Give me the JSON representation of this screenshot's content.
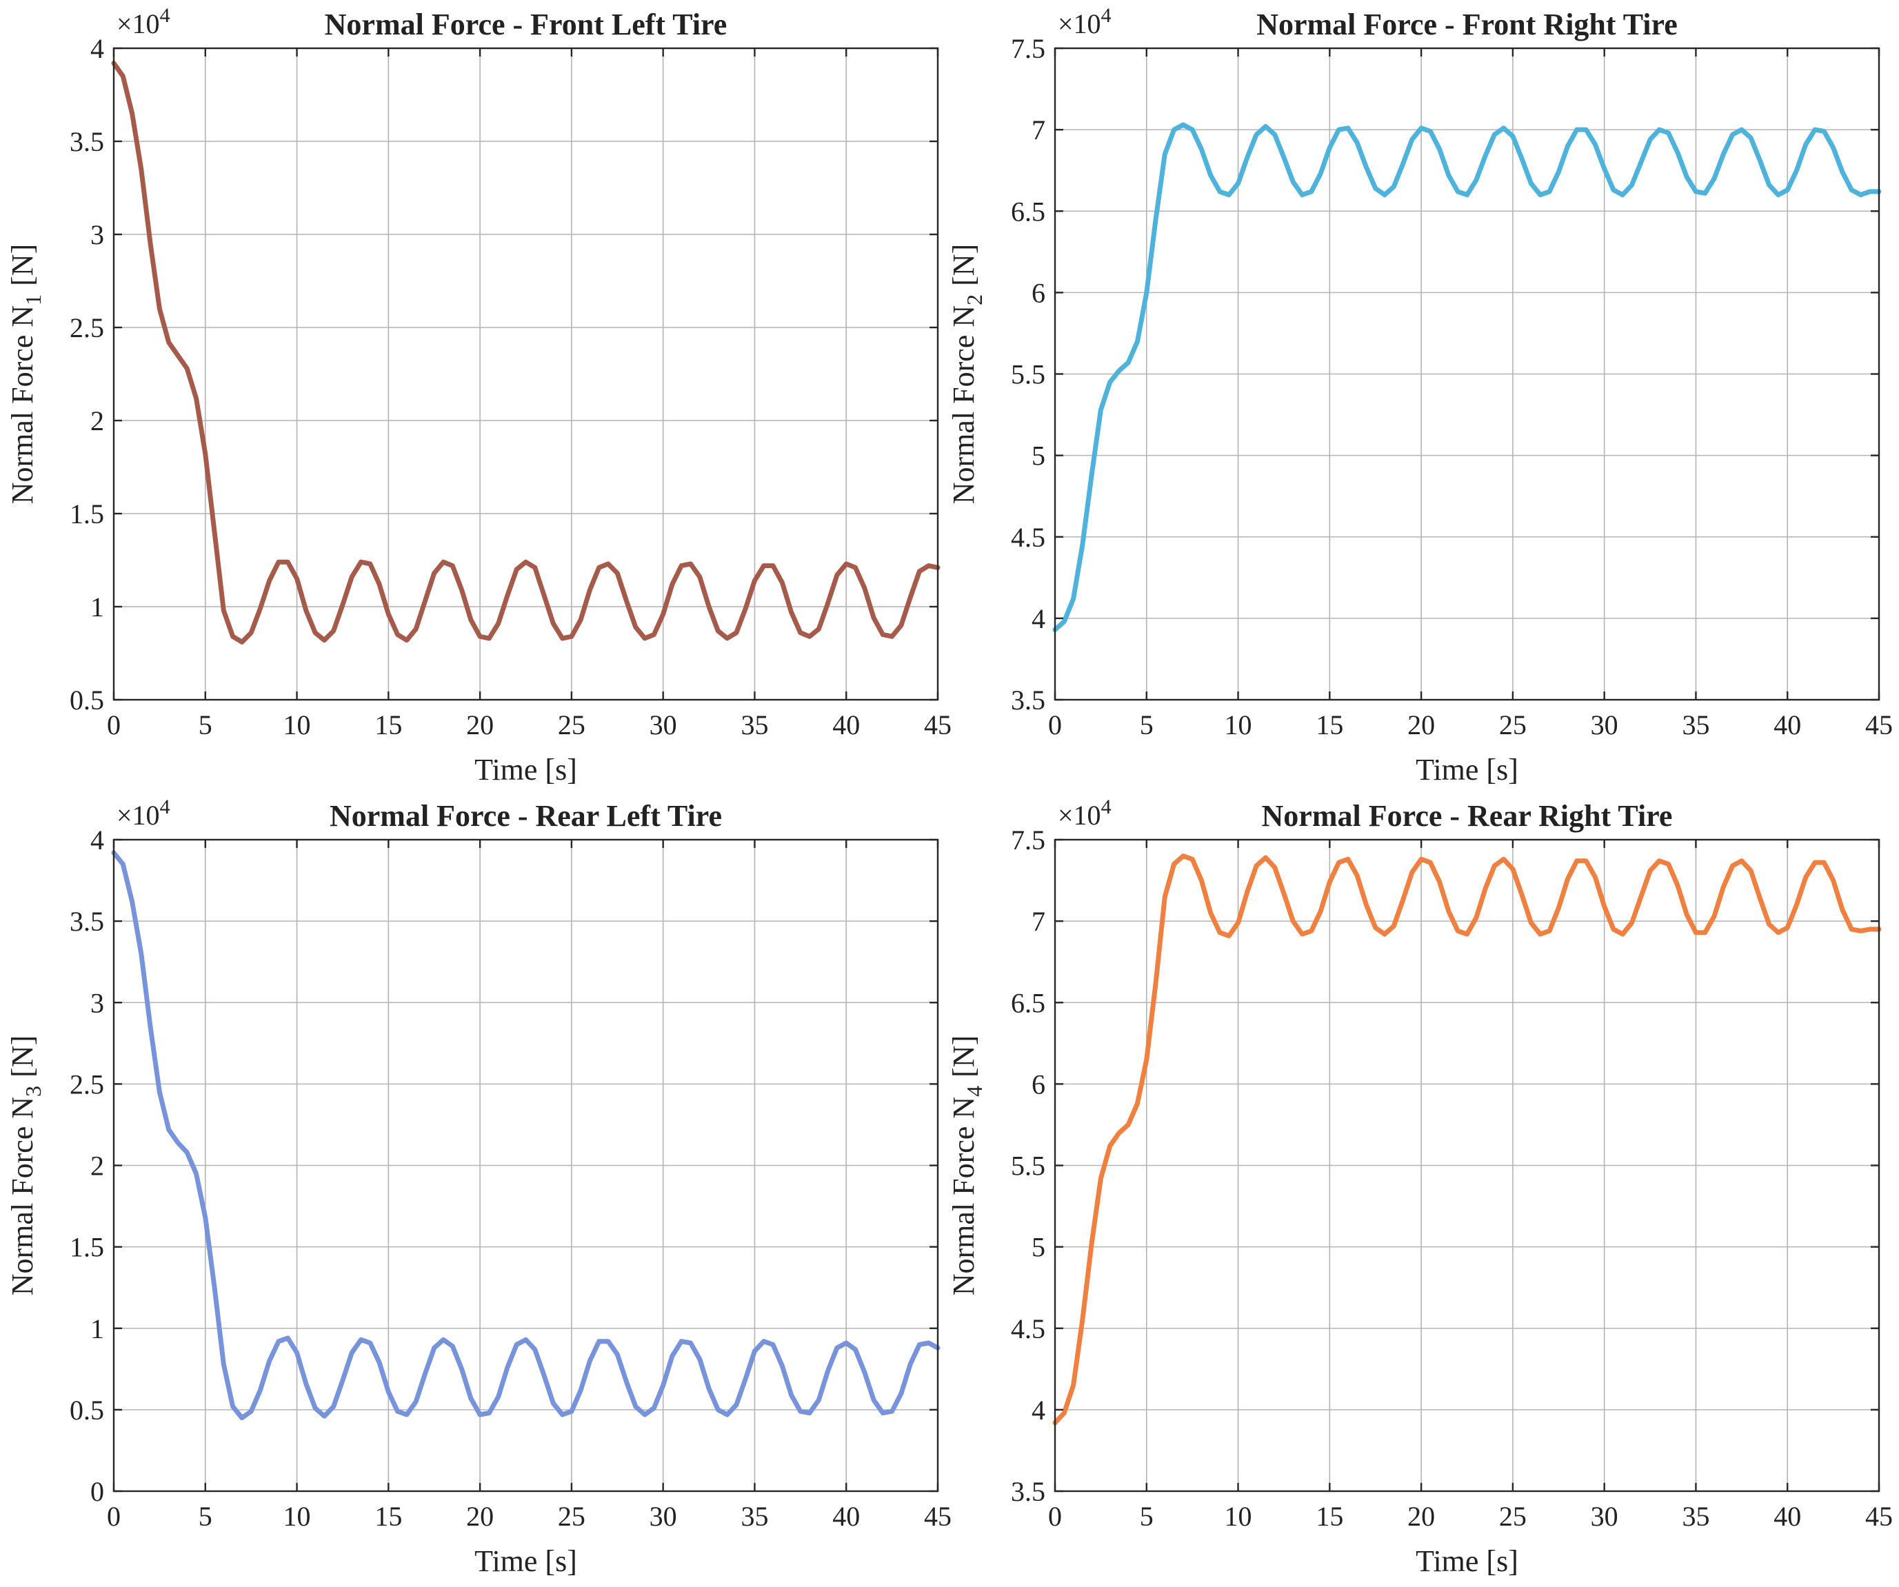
{
  "figure": {
    "description_type": "2x2 grid of line plots",
    "chart_data": [
      {
        "type": "line",
        "title": "Normal Force - Front Left Tire",
        "xlabel": "Time [s]",
        "ylabel_main": "Normal Force N",
        "ylabel_sub": "1",
        "ylabel_unit": "[N]",
        "exponent_base": "×10",
        "exponent_power": "4",
        "xlim": [
          0,
          45
        ],
        "ylim": [
          0.5,
          4
        ],
        "xticks": [
          0,
          5,
          10,
          15,
          20,
          25,
          30,
          35,
          40,
          45
        ],
        "yticks": [
          0.5,
          1,
          1.5,
          2,
          2.5,
          3,
          3.5,
          4
        ],
        "ytick_labels": [
          "0.5",
          "1",
          "1.5",
          "2",
          "2.5",
          "3",
          "3.5",
          "4"
        ],
        "grid": true,
        "color": "#a65a4a",
        "series": [
          {
            "name": "N1",
            "x": [
              0,
              0.5,
              1,
              1.5,
              2,
              2.5,
              3,
              3.5,
              4,
              4.5,
              5,
              5.5,
              6,
              6.5,
              7,
              7.5,
              8,
              8.5,
              9,
              9.5,
              10,
              10.5,
              11,
              11.5,
              12,
              12.5,
              13,
              13.5,
              14,
              14.5,
              15,
              15.5,
              16,
              16.5,
              17,
              17.5,
              18,
              18.5,
              19,
              19.5,
              20,
              20.5,
              21,
              21.5,
              22,
              22.5,
              23,
              23.5,
              24,
              24.5,
              25,
              25.5,
              26,
              26.5,
              27,
              27.5,
              28,
              28.5,
              29,
              29.5,
              30,
              30.5,
              31,
              31.5,
              32,
              32.5,
              33,
              33.5,
              34,
              34.5,
              35,
              35.5,
              36,
              36.5,
              37,
              37.5,
              38,
              38.5,
              39,
              39.5,
              40,
              40.5,
              41,
              41.5,
              42,
              42.5,
              43,
              43.5,
              44,
              44.5,
              45
            ],
            "y": [
              3.92,
              3.85,
              3.65,
              3.35,
              2.95,
              2.6,
              2.42,
              2.35,
              2.28,
              2.12,
              1.82,
              1.4,
              0.98,
              0.84,
              0.81,
              0.86,
              0.99,
              1.14,
              1.24,
              1.24,
              1.15,
              0.98,
              0.86,
              0.82,
              0.87,
              1.01,
              1.16,
              1.24,
              1.23,
              1.12,
              0.96,
              0.85,
              0.82,
              0.88,
              1.03,
              1.18,
              1.24,
              1.22,
              1.09,
              0.93,
              0.84,
              0.83,
              0.91,
              1.06,
              1.2,
              1.24,
              1.21,
              1.06,
              0.91,
              0.83,
              0.84,
              0.93,
              1.09,
              1.21,
              1.23,
              1.18,
              1.03,
              0.89,
              0.83,
              0.85,
              0.96,
              1.12,
              1.22,
              1.23,
              1.16,
              1.0,
              0.87,
              0.83,
              0.86,
              0.99,
              1.14,
              1.22,
              1.22,
              1.13,
              0.97,
              0.86,
              0.84,
              0.88,
              1.02,
              1.17,
              1.23,
              1.21,
              1.1,
              0.94,
              0.85,
              0.84,
              0.9,
              1.05,
              1.19,
              1.22,
              1.21
            ]
          }
        ]
      },
      {
        "type": "line",
        "title": "Normal Force - Front Right Tire",
        "xlabel": "Time [s]",
        "ylabel_main": "Normal Force N",
        "ylabel_sub": "2",
        "ylabel_unit": "[N]",
        "exponent_base": "×10",
        "exponent_power": "4",
        "xlim": [
          0,
          45
        ],
        "ylim": [
          3.5,
          7.5
        ],
        "xticks": [
          0,
          5,
          10,
          15,
          20,
          25,
          30,
          35,
          40,
          45
        ],
        "yticks": [
          3.5,
          4,
          4.5,
          5,
          5.5,
          6,
          6.5,
          7,
          7.5
        ],
        "ytick_labels": [
          "3.5",
          "4",
          "4.5",
          "5",
          "5.5",
          "6",
          "6.5",
          "7",
          "7.5"
        ],
        "grid": true,
        "color": "#4eb3dc",
        "series": [
          {
            "name": "N2",
            "x": [
              0,
              0.5,
              1,
              1.5,
              2,
              2.5,
              3,
              3.5,
              4,
              4.5,
              5,
              5.5,
              6,
              6.5,
              7,
              7.5,
              8,
              8.5,
              9,
              9.5,
              10,
              10.5,
              11,
              11.5,
              12,
              12.5,
              13,
              13.5,
              14,
              14.5,
              15,
              15.5,
              16,
              16.5,
              17,
              17.5,
              18,
              18.5,
              19,
              19.5,
              20,
              20.5,
              21,
              21.5,
              22,
              22.5,
              23,
              23.5,
              24,
              24.5,
              25,
              25.5,
              26,
              26.5,
              27,
              27.5,
              28,
              28.5,
              29,
              29.5,
              30,
              30.5,
              31,
              31.5,
              32,
              32.5,
              33,
              33.5,
              34,
              34.5,
              35,
              35.5,
              36,
              36.5,
              37,
              37.5,
              38,
              38.5,
              39,
              39.5,
              40,
              40.5,
              41,
              41.5,
              42,
              42.5,
              43,
              43.5,
              44,
              44.5,
              45
            ],
            "y": [
              3.93,
              3.98,
              4.12,
              4.45,
              4.88,
              5.28,
              5.45,
              5.52,
              5.57,
              5.7,
              6.0,
              6.45,
              6.85,
              7.0,
              7.03,
              7.0,
              6.88,
              6.72,
              6.62,
              6.6,
              6.67,
              6.83,
              6.97,
              7.02,
              6.97,
              6.83,
              6.68,
              6.6,
              6.62,
              6.73,
              6.89,
              7.0,
              7.01,
              6.92,
              6.77,
              6.64,
              6.6,
              6.65,
              6.79,
              6.94,
              7.01,
              6.99,
              6.88,
              6.72,
              6.62,
              6.6,
              6.69,
              6.84,
              6.97,
              7.01,
              6.96,
              6.82,
              6.67,
              6.6,
              6.62,
              6.74,
              6.9,
              7.0,
              7.0,
              6.91,
              6.76,
              6.63,
              6.6,
              6.66,
              6.8,
              6.94,
              7.0,
              6.98,
              6.86,
              6.71,
              6.62,
              6.61,
              6.7,
              6.85,
              6.97,
              7.0,
              6.95,
              6.81,
              6.66,
              6.6,
              6.63,
              6.75,
              6.91,
              7.0,
              6.99,
              6.89,
              6.74,
              6.63,
              6.6,
              6.62,
              6.62
            ]
          }
        ]
      },
      {
        "type": "line",
        "title": "Normal Force - Rear Left Tire",
        "xlabel": "Time [s]",
        "ylabel_main": "Normal Force N",
        "ylabel_sub": "3",
        "ylabel_unit": "[N]",
        "exponent_base": "×10",
        "exponent_power": "4",
        "xlim": [
          0,
          45
        ],
        "ylim": [
          0,
          4
        ],
        "xticks": [
          0,
          5,
          10,
          15,
          20,
          25,
          30,
          35,
          40,
          45
        ],
        "yticks": [
          0,
          0.5,
          1,
          1.5,
          2,
          2.5,
          3,
          3.5,
          4
        ],
        "ytick_labels": [
          "0",
          "0.5",
          "1",
          "1.5",
          "2",
          "2.5",
          "3",
          "3.5",
          "4"
        ],
        "grid": true,
        "color": "#7793dc",
        "series": [
          {
            "name": "N3",
            "x": [
              0,
              0.5,
              1,
              1.5,
              2,
              2.5,
              3,
              3.5,
              4,
              4.5,
              5,
              5.5,
              6,
              6.5,
              7,
              7.5,
              8,
              8.5,
              9,
              9.5,
              10,
              10.5,
              11,
              11.5,
              12,
              12.5,
              13,
              13.5,
              14,
              14.5,
              15,
              15.5,
              16,
              16.5,
              17,
              17.5,
              18,
              18.5,
              19,
              19.5,
              20,
              20.5,
              21,
              21.5,
              22,
              22.5,
              23,
              23.5,
              24,
              24.5,
              25,
              25.5,
              26,
              26.5,
              27,
              27.5,
              28,
              28.5,
              29,
              29.5,
              30,
              30.5,
              31,
              31.5,
              32,
              32.5,
              33,
              33.5,
              34,
              34.5,
              35,
              35.5,
              36,
              36.5,
              37,
              37.5,
              38,
              38.5,
              39,
              39.5,
              40,
              40.5,
              41,
              41.5,
              42,
              42.5,
              43,
              43.5,
              44,
              44.5,
              45
            ],
            "y": [
              3.92,
              3.85,
              3.62,
              3.3,
              2.85,
              2.45,
              2.22,
              2.14,
              2.08,
              1.95,
              1.68,
              1.25,
              0.78,
              0.52,
              0.45,
              0.49,
              0.62,
              0.8,
              0.92,
              0.94,
              0.85,
              0.66,
              0.51,
              0.46,
              0.52,
              0.68,
              0.85,
              0.93,
              0.91,
              0.79,
              0.61,
              0.49,
              0.47,
              0.55,
              0.72,
              0.88,
              0.93,
              0.89,
              0.75,
              0.57,
              0.47,
              0.48,
              0.58,
              0.76,
              0.9,
              0.93,
              0.87,
              0.71,
              0.54,
              0.47,
              0.49,
              0.62,
              0.8,
              0.92,
              0.92,
              0.84,
              0.67,
              0.52,
              0.47,
              0.51,
              0.65,
              0.83,
              0.92,
              0.91,
              0.81,
              0.63,
              0.5,
              0.47,
              0.53,
              0.69,
              0.86,
              0.92,
              0.9,
              0.77,
              0.59,
              0.49,
              0.48,
              0.56,
              0.74,
              0.88,
              0.91,
              0.87,
              0.73,
              0.56,
              0.48,
              0.49,
              0.6,
              0.78,
              0.9,
              0.91,
              0.88
            ]
          }
        ]
      },
      {
        "type": "line",
        "title": "Normal Force - Rear Right Tire",
        "xlabel": "Time [s]",
        "ylabel_main": "Normal Force N",
        "ylabel_sub": "4",
        "ylabel_unit": "[N]",
        "exponent_base": "×10",
        "exponent_power": "4",
        "xlim": [
          0,
          45
        ],
        "ylim": [
          3.5,
          7.5
        ],
        "xticks": [
          0,
          5,
          10,
          15,
          20,
          25,
          30,
          35,
          40,
          45
        ],
        "yticks": [
          3.5,
          4,
          4.5,
          5,
          5.5,
          6,
          6.5,
          7,
          7.5
        ],
        "ytick_labels": [
          "3.5",
          "4",
          "4.5",
          "5",
          "5.5",
          "6",
          "6.5",
          "7",
          "7.5"
        ],
        "grid": true,
        "color": "#f08040",
        "series": [
          {
            "name": "N4",
            "x": [
              0,
              0.5,
              1,
              1.5,
              2,
              2.5,
              3,
              3.5,
              4,
              4.5,
              5,
              5.5,
              6,
              6.5,
              7,
              7.5,
              8,
              8.5,
              9,
              9.5,
              10,
              10.5,
              11,
              11.5,
              12,
              12.5,
              13,
              13.5,
              14,
              14.5,
              15,
              15.5,
              16,
              16.5,
              17,
              17.5,
              18,
              18.5,
              19,
              19.5,
              20,
              20.5,
              21,
              21.5,
              22,
              22.5,
              23,
              23.5,
              24,
              24.5,
              25,
              25.5,
              26,
              26.5,
              27,
              27.5,
              28,
              28.5,
              29,
              29.5,
              30,
              30.5,
              31,
              31.5,
              32,
              32.5,
              33,
              33.5,
              34,
              34.5,
              35,
              35.5,
              36,
              36.5,
              37,
              37.5,
              38,
              38.5,
              39,
              39.5,
              40,
              40.5,
              41,
              41.5,
              42,
              42.5,
              43,
              43.5,
              44,
              44.5,
              45
            ],
            "y": [
              3.92,
              3.98,
              4.15,
              4.55,
              5.02,
              5.42,
              5.62,
              5.7,
              5.75,
              5.88,
              6.15,
              6.62,
              7.15,
              7.35,
              7.4,
              7.38,
              7.25,
              7.05,
              6.93,
              6.91,
              6.99,
              7.18,
              7.34,
              7.39,
              7.33,
              7.17,
              7.0,
              6.92,
              6.94,
              7.06,
              7.24,
              7.36,
              7.38,
              7.28,
              7.1,
              6.96,
              6.92,
              6.97,
              7.13,
              7.3,
              7.38,
              7.36,
              7.24,
              7.06,
              6.94,
              6.92,
              7.02,
              7.2,
              7.34,
              7.38,
              7.32,
              7.16,
              6.99,
              6.92,
              6.94,
              7.08,
              7.26,
              7.37,
              7.37,
              7.27,
              7.09,
              6.95,
              6.92,
              6.99,
              7.15,
              7.31,
              7.37,
              7.35,
              7.22,
              7.04,
              6.93,
              6.93,
              7.03,
              7.21,
              7.34,
              7.37,
              7.31,
              7.14,
              6.98,
              6.93,
              6.96,
              7.1,
              7.27,
              7.36,
              7.36,
              7.25,
              7.07,
              6.95,
              6.94,
              6.95,
              6.95
            ]
          }
        ]
      }
    ]
  }
}
